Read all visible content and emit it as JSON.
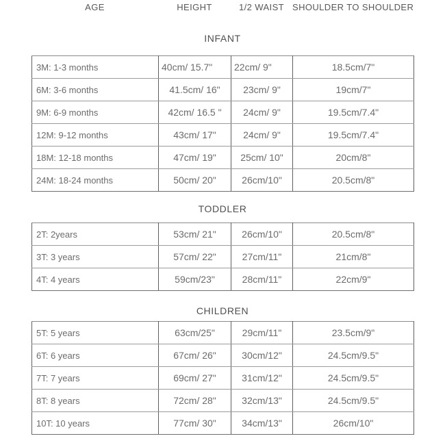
{
  "header": {
    "columns": [
      {
        "label": "AGE"
      },
      {
        "label": "HEIGHT"
      },
      {
        "label": "1/2 WAIST"
      },
      {
        "label": "SHOULDER TO SHOULDER"
      }
    ]
  },
  "sections": [
    {
      "title": "INFANT",
      "rows": [
        {
          "age": "3M: 1-3 months",
          "height": "40cm/ 15.7\"",
          "half_waist": "22cm/ 9\"",
          "shoulder": "18.5cm/7\""
        },
        {
          "age": "6M: 3-6 months",
          "height": "41.5cm/ 16\"",
          "half_waist": "23cm/ 9\"",
          "shoulder": "19cm/7\""
        },
        {
          "age": "9M: 6-9 months",
          "height": "42cm/ 16.5 \"",
          "half_waist": "24cm/ 9\"",
          "shoulder": "19.5cm/7.4\""
        },
        {
          "age": "12M: 9-12 months",
          "height": "43cm/ 17\"",
          "half_waist": "24cm/ 9\"",
          "shoulder": "19.5cm/7.4\""
        },
        {
          "age": "18M: 12-18 months",
          "height": "47cm/ 19\"",
          "half_waist": "25cm/ 10\"",
          "shoulder": "20cm/8\""
        },
        {
          "age": "24M: 18-24 months",
          "height": "50cm/ 20\"",
          "half_waist": "26cm/10\"",
          "shoulder": "20.5cm/8\""
        }
      ]
    },
    {
      "title": "TODDLER",
      "rows": [
        {
          "age": "2T: 2years",
          "height": "53cm/ 21\"",
          "half_waist": "26cm/10\"",
          "shoulder": "20.5cm/8\""
        },
        {
          "age": "3T: 3 years",
          "height": "57cm/ 22\"",
          "half_waist": "27cm/11\"",
          "shoulder": "21cm/8\""
        },
        {
          "age": "4T: 4 years",
          "height": "59cm/23\"",
          "half_waist": "28cm/11\"",
          "shoulder": "22cm/9\""
        }
      ]
    },
    {
      "title": "CHILDREN",
      "rows": [
        {
          "age": "5T: 5 years",
          "height": "63cm/25\"",
          "half_waist": "29cm/11\"",
          "shoulder": "23.5cm/9\""
        },
        {
          "age": "6T: 6 years",
          "height": "67cm/ 26\"",
          "half_waist": "30cm/12\"",
          "shoulder": "24.5cm/9.5\""
        },
        {
          "age": "7T: 7 years",
          "height": "69cm/ 27\"",
          "half_waist": "31cm/12\"",
          "shoulder": "24.5cm/9.5\""
        },
        {
          "age": "8T: 8 years",
          "height": "72cm/ 28\"",
          "half_waist": "32cm/13\"",
          "shoulder": "24.5cm/9.5\""
        },
        {
          "age": "10T: 10 years",
          "height": "77cm/ 30\"",
          "half_waist": "34cm/13\"",
          "shoulder": "26cm/10\""
        }
      ]
    }
  ]
}
